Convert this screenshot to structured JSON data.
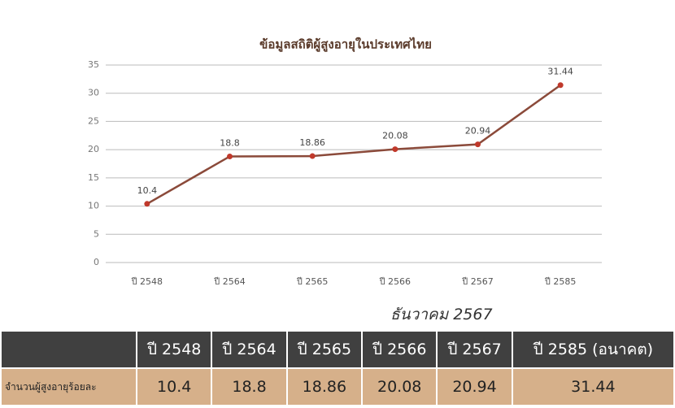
{
  "chart_data": {
    "type": "line",
    "title": "ข้อมูลสถิติผู้สูงอายุในประเทศไทย",
    "categories": [
      "ปี 2548",
      "ปี 2564",
      "ปี 2565",
      "ปี 2566",
      "ปี 2567",
      "ปี 2585"
    ],
    "values": [
      10.4,
      18.8,
      18.86,
      20.08,
      20.94,
      31.44
    ],
    "color": "#8b4a3a",
    "marker_color": "#c0392b",
    "ylim": [
      0,
      35
    ],
    "yticks": [
      0,
      5,
      10,
      15,
      20,
      25,
      30,
      35
    ],
    "grid": true
  },
  "subtitle": "ธันวาคม 2567",
  "table": {
    "header": [
      "ปี 2548",
      "ปี 2564",
      "ปี 2565",
      "ปี 2566",
      "ปี 2567",
      "ปี 2585 (อนาคต)"
    ],
    "rows": [
      [
        "จำนวนผู้สูงอายุร้อยละ",
        "10.4",
        "18.8",
        "18.86",
        "20.08",
        "20.94",
        "31.44"
      ]
    ]
  }
}
